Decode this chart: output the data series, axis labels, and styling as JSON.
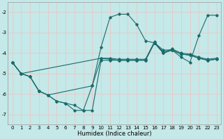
{
  "background_color": "#c5e8e8",
  "grid_color": "#e8c8c8",
  "line_color": "#1a6b6b",
  "xlabel": "Humidex (Indice chaleur)",
  "xlim": [
    -0.5,
    23.5
  ],
  "ylim": [
    -7.5,
    -1.5
  ],
  "xticks": [
    0,
    1,
    2,
    3,
    4,
    5,
    6,
    7,
    8,
    9,
    10,
    11,
    12,
    13,
    14,
    15,
    16,
    17,
    18,
    19,
    20,
    21,
    22,
    23
  ],
  "yticks": [
    -7,
    -6,
    -5,
    -4,
    -3,
    -2
  ],
  "series": [
    {
      "x": [
        0,
        1,
        2,
        3,
        4,
        5,
        6,
        7,
        8,
        9,
        10,
        11,
        12,
        13,
        14,
        15,
        16,
        17,
        18,
        19,
        20,
        21,
        22,
        23
      ],
      "y": [
        -4.45,
        -5.0,
        -5.15,
        -5.85,
        -6.05,
        -6.35,
        -6.45,
        -6.55,
        -6.8,
        -5.6,
        -3.7,
        -2.25,
        -2.1,
        -2.1,
        -2.6,
        -3.4,
        -3.5,
        -3.85,
        -3.85,
        -4.2,
        -4.45,
        -3.15,
        -2.15,
        -2.15
      ]
    },
    {
      "x": [
        0,
        1,
        2,
        3,
        4,
        9,
        10,
        11,
        12,
        13,
        14,
        15,
        16,
        17,
        18,
        19,
        20,
        21,
        22,
        23
      ],
      "y": [
        -4.45,
        -5.0,
        -5.15,
        -5.85,
        -6.05,
        -5.6,
        -4.25,
        -4.3,
        -4.35,
        -4.35,
        -4.35,
        -4.35,
        -3.5,
        -4.0,
        -3.85,
        -4.05,
        -4.1,
        -4.25,
        -4.35,
        -4.3
      ]
    },
    {
      "x": [
        0,
        1,
        2,
        3,
        4,
        5,
        6,
        7,
        8,
        9,
        10,
        11,
        12,
        13,
        14,
        15,
        16,
        17,
        18,
        19,
        20,
        21,
        22,
        23
      ],
      "y": [
        -4.45,
        -5.0,
        -5.15,
        -5.85,
        -6.05,
        -6.35,
        -6.45,
        -6.8,
        -6.8,
        -6.8,
        -4.35,
        -4.35,
        -4.35,
        -4.35,
        -4.35,
        -4.35,
        -3.5,
        -4.0,
        -3.85,
        -4.05,
        -4.1,
        -4.25,
        -4.35,
        -4.3
      ]
    },
    {
      "x": [
        0,
        1,
        10,
        11,
        12,
        13,
        14,
        15,
        16,
        17,
        18,
        19,
        20,
        21,
        22,
        23
      ],
      "y": [
        -4.45,
        -5.0,
        -4.25,
        -4.25,
        -4.3,
        -4.3,
        -4.3,
        -4.3,
        -3.45,
        -3.95,
        -3.8,
        -4.0,
        -4.05,
        -4.2,
        -4.3,
        -4.25
      ]
    }
  ]
}
